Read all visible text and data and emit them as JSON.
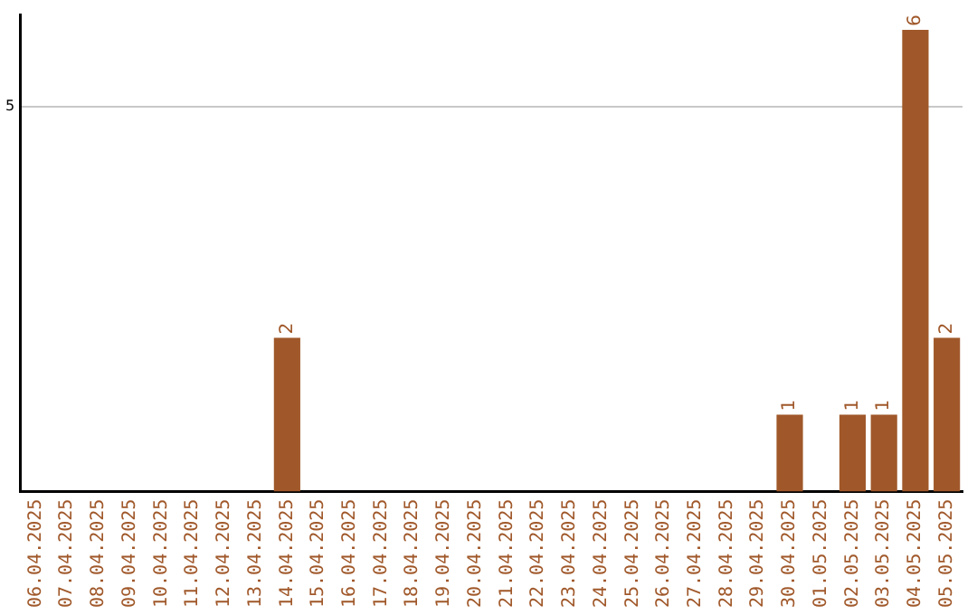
{
  "chart_data": {
    "type": "bar",
    "categories": [
      "06.04.2025",
      "07.04.2025",
      "08.04.2025",
      "09.04.2025",
      "10.04.2025",
      "11.04.2025",
      "12.04.2025",
      "13.04.2025",
      "14.04.2025",
      "15.04.2025",
      "16.04.2025",
      "17.04.2025",
      "18.04.2025",
      "19.04.2025",
      "20.04.2025",
      "21.04.2025",
      "22.04.2025",
      "23.04.2025",
      "24.04.2025",
      "25.04.2025",
      "26.04.2025",
      "27.04.2025",
      "28.04.2025",
      "29.04.2025",
      "30.04.2025",
      "01.05.2025",
      "02.05.2025",
      "03.05.2025",
      "04.05.2025",
      "05.05.2025"
    ],
    "values": [
      0,
      0,
      0,
      0,
      0,
      0,
      0,
      0,
      2,
      0,
      0,
      0,
      0,
      0,
      0,
      0,
      0,
      0,
      0,
      0,
      0,
      0,
      0,
      0,
      1,
      0,
      1,
      1,
      6,
      2
    ],
    "value_labels": [
      null,
      null,
      null,
      null,
      null,
      null,
      null,
      null,
      "2",
      null,
      null,
      null,
      null,
      null,
      null,
      null,
      null,
      null,
      null,
      null,
      null,
      null,
      null,
      null,
      "1",
      null,
      "1",
      "1",
      "6",
      "2"
    ],
    "color": "#a0582a",
    "ylim": [
      0,
      6.2
    ],
    "yticks": [
      5
    ],
    "grid": "y",
    "legend": false
  }
}
